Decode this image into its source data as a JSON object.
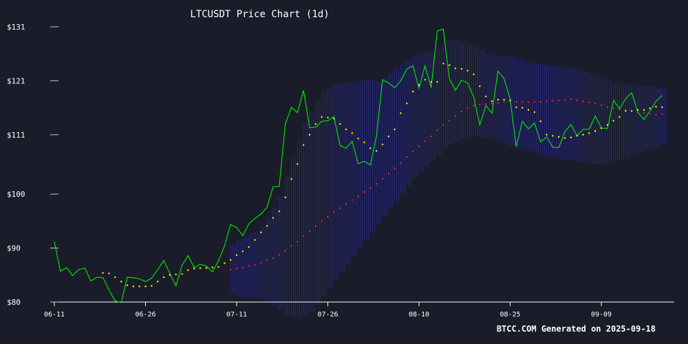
{
  "chart_data": {
    "type": "line",
    "title": "LTCUSDT Price Chart (1d)",
    "footer": "BTCC.COM Generated on 2025-09-18",
    "xlabel": "",
    "ylabel": "",
    "ylim": [
      80,
      131
    ],
    "y_ticks": [
      {
        "value": 131,
        "label": "$131"
      },
      {
        "value": 121,
        "label": "$121"
      },
      {
        "value": 111,
        "label": "$111"
      },
      {
        "value": 100,
        "label": "$100"
      },
      {
        "value": 90,
        "label": "$90"
      },
      {
        "value": 80,
        "label": "$80"
      }
    ],
    "x_ticks": [
      {
        "date": "2025-06-11",
        "label": "06-11"
      },
      {
        "date": "2025-06-26",
        "label": "06-26"
      },
      {
        "date": "2025-07-11",
        "label": "07-11"
      },
      {
        "date": "2025-07-26",
        "label": "07-26"
      },
      {
        "date": "2025-08-10",
        "label": "08-10"
      },
      {
        "date": "2025-08-25",
        "label": "08-25"
      },
      {
        "date": "2025-09-09",
        "label": "09-09"
      }
    ],
    "start_date": "2025-06-11",
    "colors": {
      "background": "#1a1d29",
      "price": "#00ff00",
      "sar": "#ffff00",
      "ma": "#ff2020",
      "band": "#2a2aa0",
      "axis": "#ffffff"
    },
    "series": [
      {
        "key": "price",
        "values": [
          91.2,
          85.7,
          86.4,
          84.9,
          86.0,
          86.3,
          83.9,
          84.6,
          84.5,
          82.2,
          80.2,
          79.9,
          84.6,
          84.5,
          84.3,
          83.8,
          84.4,
          86.0,
          87.7,
          85.3,
          83.0,
          86.8,
          88.6,
          86.4,
          87.0,
          86.7,
          85.6,
          87.6,
          90.4,
          94.4,
          93.8,
          92.3,
          94.5,
          95.5,
          96.3,
          97.6,
          101.4,
          101.4,
          113.0,
          116.1,
          115.1,
          119.2,
          112.3,
          112.4,
          113.5,
          113.6,
          114.4,
          109.0,
          108.5,
          109.8,
          105.6,
          106.1,
          105.4,
          110.8,
          121.2,
          120.6,
          119.7,
          121.0,
          123.2,
          123.8,
          119.6,
          123.8,
          119.7,
          130.2,
          130.6,
          121.4,
          119.2,
          121.1,
          120.6,
          118.0,
          112.8,
          116.4,
          115.0,
          122.8,
          121.4,
          117.6,
          108.8,
          113.5,
          112.1,
          113.2,
          109.7,
          110.6,
          108.7,
          108.6,
          111.6,
          112.9,
          110.8,
          112.0,
          112.0,
          114.5,
          112.3,
          112.1,
          117.4,
          115.8,
          117.7,
          118.8,
          115.2,
          113.8,
          115.4,
          117.2,
          118.3
        ]
      },
      {
        "key": "sar",
        "values": [
          null,
          null,
          null,
          null,
          null,
          null,
          null,
          null,
          85.4,
          85.3,
          84.6,
          83.8,
          83.1,
          82.9,
          82.9,
          82.9,
          83.0,
          83.8,
          84.6,
          85.0,
          85.1,
          85.2,
          85.9,
          86.2,
          86.3,
          86.3,
          86.4,
          86.5,
          87.2,
          87.8,
          88.7,
          89.4,
          90.2,
          91.5,
          92.9,
          94.1,
          95.6,
          96.8,
          99.4,
          102.8,
          105.6,
          109.1,
          111.0,
          113.0,
          114.3,
          114.2,
          114.0,
          113.0,
          112.0,
          111.3,
          110.3,
          109.6,
          108.5,
          108.0,
          109.2,
          110.7,
          112.0,
          115.0,
          116.8,
          119.0,
          120.2,
          121.2,
          120.8,
          120.8,
          124.2,
          123.9,
          123.3,
          123.2,
          122.9,
          122.2,
          120.0,
          118.1,
          117.2,
          117.5,
          117.5,
          117.4,
          116.1,
          116.0,
          115.6,
          115.2,
          113.5,
          111.0,
          110.8,
          110.6,
          110.4,
          110.5,
          110.8,
          111.0,
          111.3,
          111.7,
          112.2,
          112.8,
          113.6,
          114.3,
          115.4,
          115.4,
          115.6,
          115.6,
          115.9,
          116.2,
          116.1
        ]
      },
      {
        "key": "ma",
        "values": [
          null,
          null,
          null,
          null,
          null,
          null,
          null,
          null,
          null,
          null,
          null,
          null,
          null,
          null,
          null,
          null,
          null,
          null,
          null,
          null,
          null,
          null,
          null,
          null,
          null,
          null,
          null,
          null,
          null,
          86.0,
          86.2,
          86.4,
          86.7,
          86.9,
          87.3,
          87.7,
          88.1,
          88.7,
          89.5,
          90.4,
          91.2,
          92.2,
          93.1,
          94.1,
          95.0,
          95.8,
          96.7,
          97.4,
          98.2,
          98.9,
          99.6,
          100.4,
          101.1,
          101.9,
          102.8,
          103.8,
          104.8,
          105.8,
          106.9,
          107.9,
          108.8,
          109.8,
          110.7,
          111.8,
          112.8,
          113.6,
          114.5,
          115.3,
          115.9,
          116.4,
          116.6,
          116.7,
          116.8,
          116.9,
          117.1,
          117.1,
          117.1,
          117.1,
          117.0,
          117.1,
          117.1,
          117.2,
          117.3,
          117.4,
          117.5,
          117.6,
          117.4,
          117.2,
          117.0,
          116.8,
          116.5,
          116.1,
          115.9,
          115.7,
          115.6,
          115.4,
          115.2,
          115.0,
          114.9,
          114.7,
          114.8
        ]
      },
      {
        "key": "band_upper",
        "values": [
          null,
          null,
          null,
          null,
          null,
          null,
          null,
          null,
          null,
          null,
          null,
          null,
          null,
          null,
          null,
          null,
          null,
          null,
          null,
          null,
          null,
          null,
          null,
          null,
          null,
          null,
          null,
          null,
          null,
          90.5,
          91.3,
          91.9,
          92.4,
          93.2,
          94.2,
          95.5,
          97.4,
          99.6,
          103.3,
          106.9,
          110.0,
          113.2,
          115.5,
          117.6,
          118.9,
          119.5,
          120.3,
          120.6,
          120.8,
          120.8,
          121.0,
          121.2,
          121.1,
          121.0,
          121.5,
          122.4,
          123.2,
          124.0,
          124.8,
          125.6,
          125.8,
          126.3,
          126.6,
          127.5,
          128.4,
          128.5,
          128.5,
          128.2,
          127.9,
          127.3,
          126.8,
          126.2,
          125.9,
          125.7,
          125.6,
          125.4,
          125.1,
          124.7,
          124.4,
          124.2,
          124.0,
          123.8,
          123.7,
          123.6,
          123.6,
          123.4,
          123.0,
          122.6,
          122.2,
          121.9,
          121.5,
          121.0,
          120.7,
          120.5,
          120.3,
          120.2,
          120.1,
          120.0,
          119.8,
          119.8,
          119.6
        ]
      },
      {
        "key": "band_lower",
        "values": [
          null,
          null,
          null,
          null,
          null,
          null,
          null,
          null,
          null,
          null,
          null,
          null,
          null,
          null,
          null,
          null,
          null,
          null,
          null,
          null,
          null,
          null,
          null,
          null,
          null,
          null,
          null,
          null,
          null,
          81.5,
          81.2,
          81.0,
          81.0,
          80.8,
          80.5,
          80.0,
          79.4,
          78.6,
          77.7,
          77.3,
          77.2,
          77.5,
          78.3,
          79.5,
          81.1,
          82.5,
          84.1,
          85.5,
          87.1,
          88.6,
          90.0,
          91.5,
          93.0,
          94.4,
          96.0,
          97.4,
          98.7,
          100.2,
          101.6,
          103.0,
          104.0,
          105.1,
          106.1,
          107.2,
          108.4,
          109.2,
          109.8,
          110.3,
          110.6,
          110.7,
          110.5,
          110.4,
          110.2,
          109.8,
          109.4,
          108.9,
          108.5,
          108.3,
          108.0,
          107.8,
          107.5,
          107.0,
          106.9,
          106.5,
          106.3,
          106.2,
          105.9,
          105.8,
          105.7,
          105.6,
          105.5,
          105.8,
          106.1,
          106.5,
          106.7,
          107.2,
          107.6,
          108.1,
          108.4,
          108.9,
          109.4
        ]
      }
    ]
  }
}
